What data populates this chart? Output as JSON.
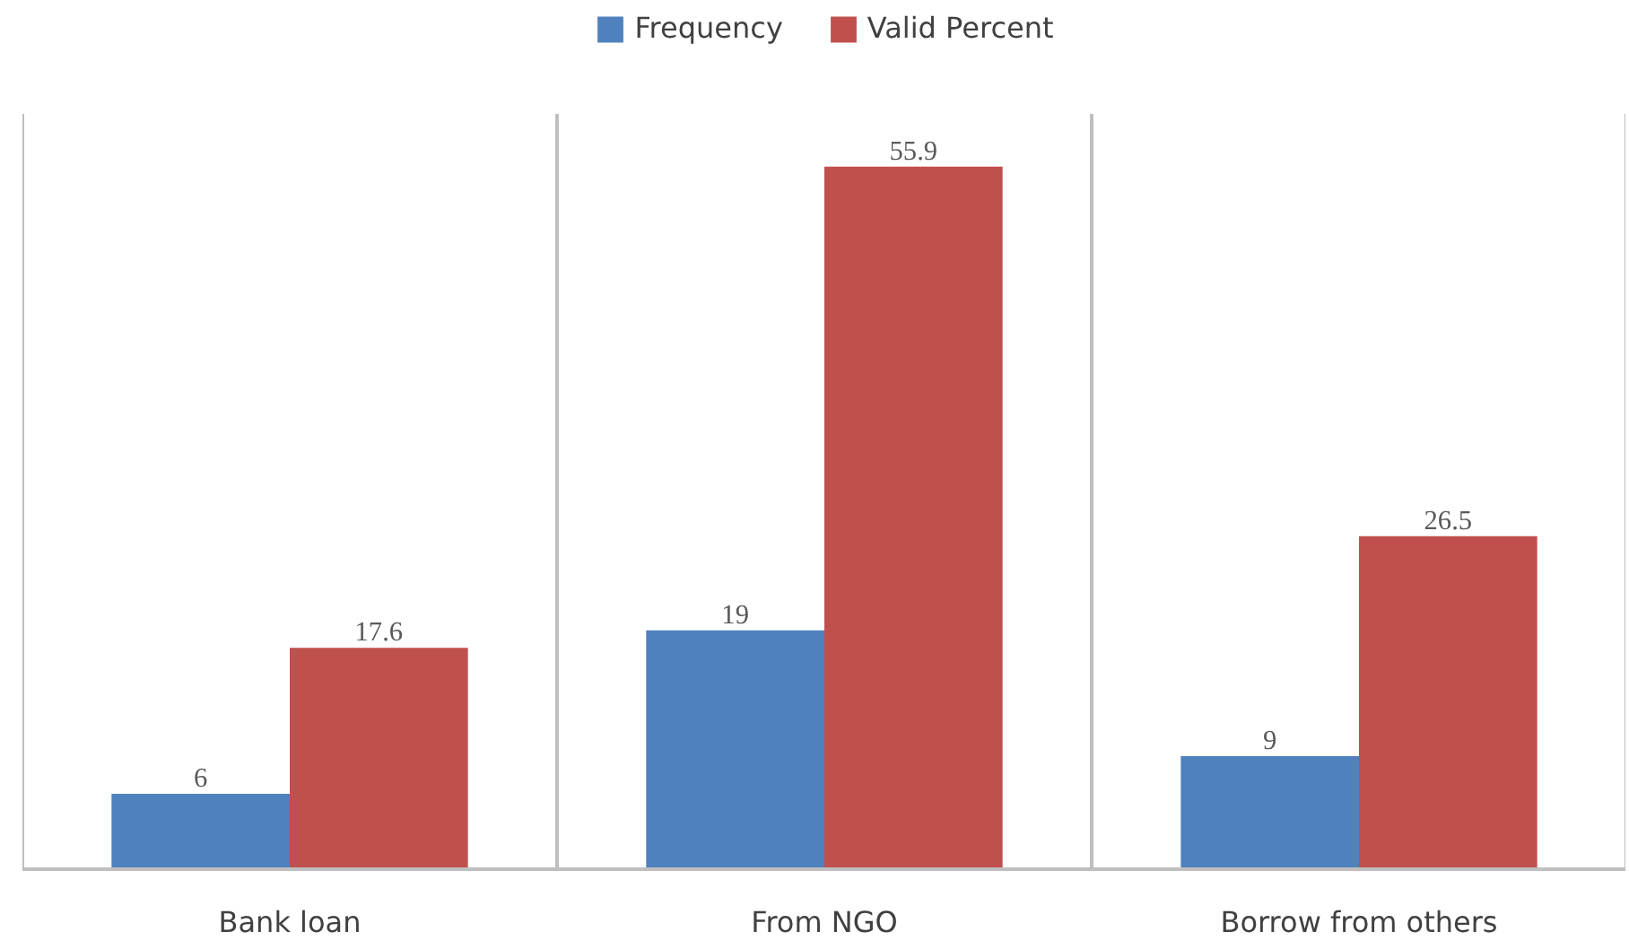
{
  "chart_data": {
    "type": "bar",
    "categories": [
      "Bank loan",
      "From NGO",
      "Borrow from others"
    ],
    "series": [
      {
        "name": "Frequency",
        "color": "#4f81bd",
        "values": [
          6,
          19,
          9
        ]
      },
      {
        "name": "Valid Percent",
        "color": "#c0504d",
        "values": [
          17.6,
          55.9,
          26.5
        ]
      }
    ],
    "data_labels": true,
    "grid": "x",
    "legend": "top"
  }
}
